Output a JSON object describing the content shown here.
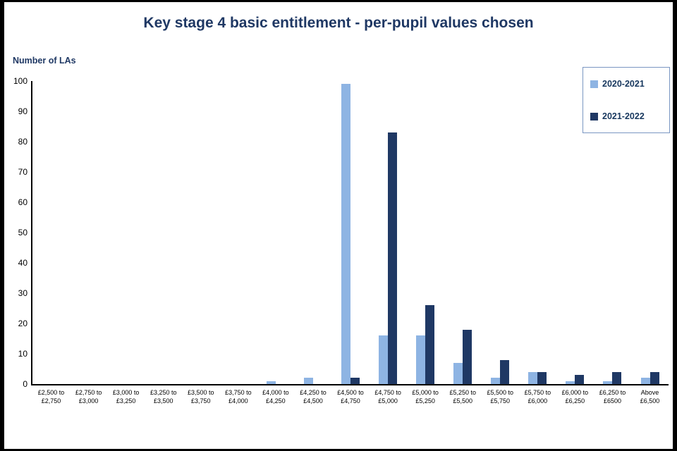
{
  "chart_data": {
    "type": "bar",
    "title": "Key stage 4 basic entitlement - per-pupil values chosen",
    "ylabel": "Number of LAs",
    "xlabel": "",
    "ylim": [
      0,
      100
    ],
    "ytick_step": 10,
    "grid": false,
    "legend_position": "top-right",
    "categories": [
      [
        "£2,500 to",
        "£2,750"
      ],
      [
        "£2,750 to",
        "£3,000"
      ],
      [
        "£3,000 to",
        "£3,250"
      ],
      [
        "£3,250 to",
        "£3,500"
      ],
      [
        "£3,500 to",
        "£3,750"
      ],
      [
        "£3,750 to",
        "£4,000"
      ],
      [
        "£4,000 to",
        "£4,250"
      ],
      [
        "£4,250 to",
        "£4,500"
      ],
      [
        "£4,500 to",
        "£4,750"
      ],
      [
        "£4,750 to",
        "£5,000"
      ],
      [
        "£5,000 to",
        "£5,250"
      ],
      [
        "£5,250 to",
        "£5,500"
      ],
      [
        "£5,500 to",
        "£5,750"
      ],
      [
        "£5,750 to",
        "£6,000"
      ],
      [
        "£6,000 to",
        "£6,250"
      ],
      [
        "£6,250 to",
        "£6500"
      ],
      [
        "Above",
        "£6,500"
      ]
    ],
    "series": [
      {
        "name": "2020-2021",
        "color": "#8EB4E3",
        "values": [
          0,
          0,
          0,
          0,
          0,
          0,
          1,
          2,
          99,
          16,
          16,
          7,
          2,
          4,
          1,
          1,
          2
        ]
      },
      {
        "name": "2021-2022",
        "color": "#1F3864",
        "values": [
          0,
          0,
          0,
          0,
          0,
          0,
          0,
          0,
          2,
          83,
          26,
          18,
          8,
          4,
          3,
          4,
          4
        ]
      }
    ]
  }
}
